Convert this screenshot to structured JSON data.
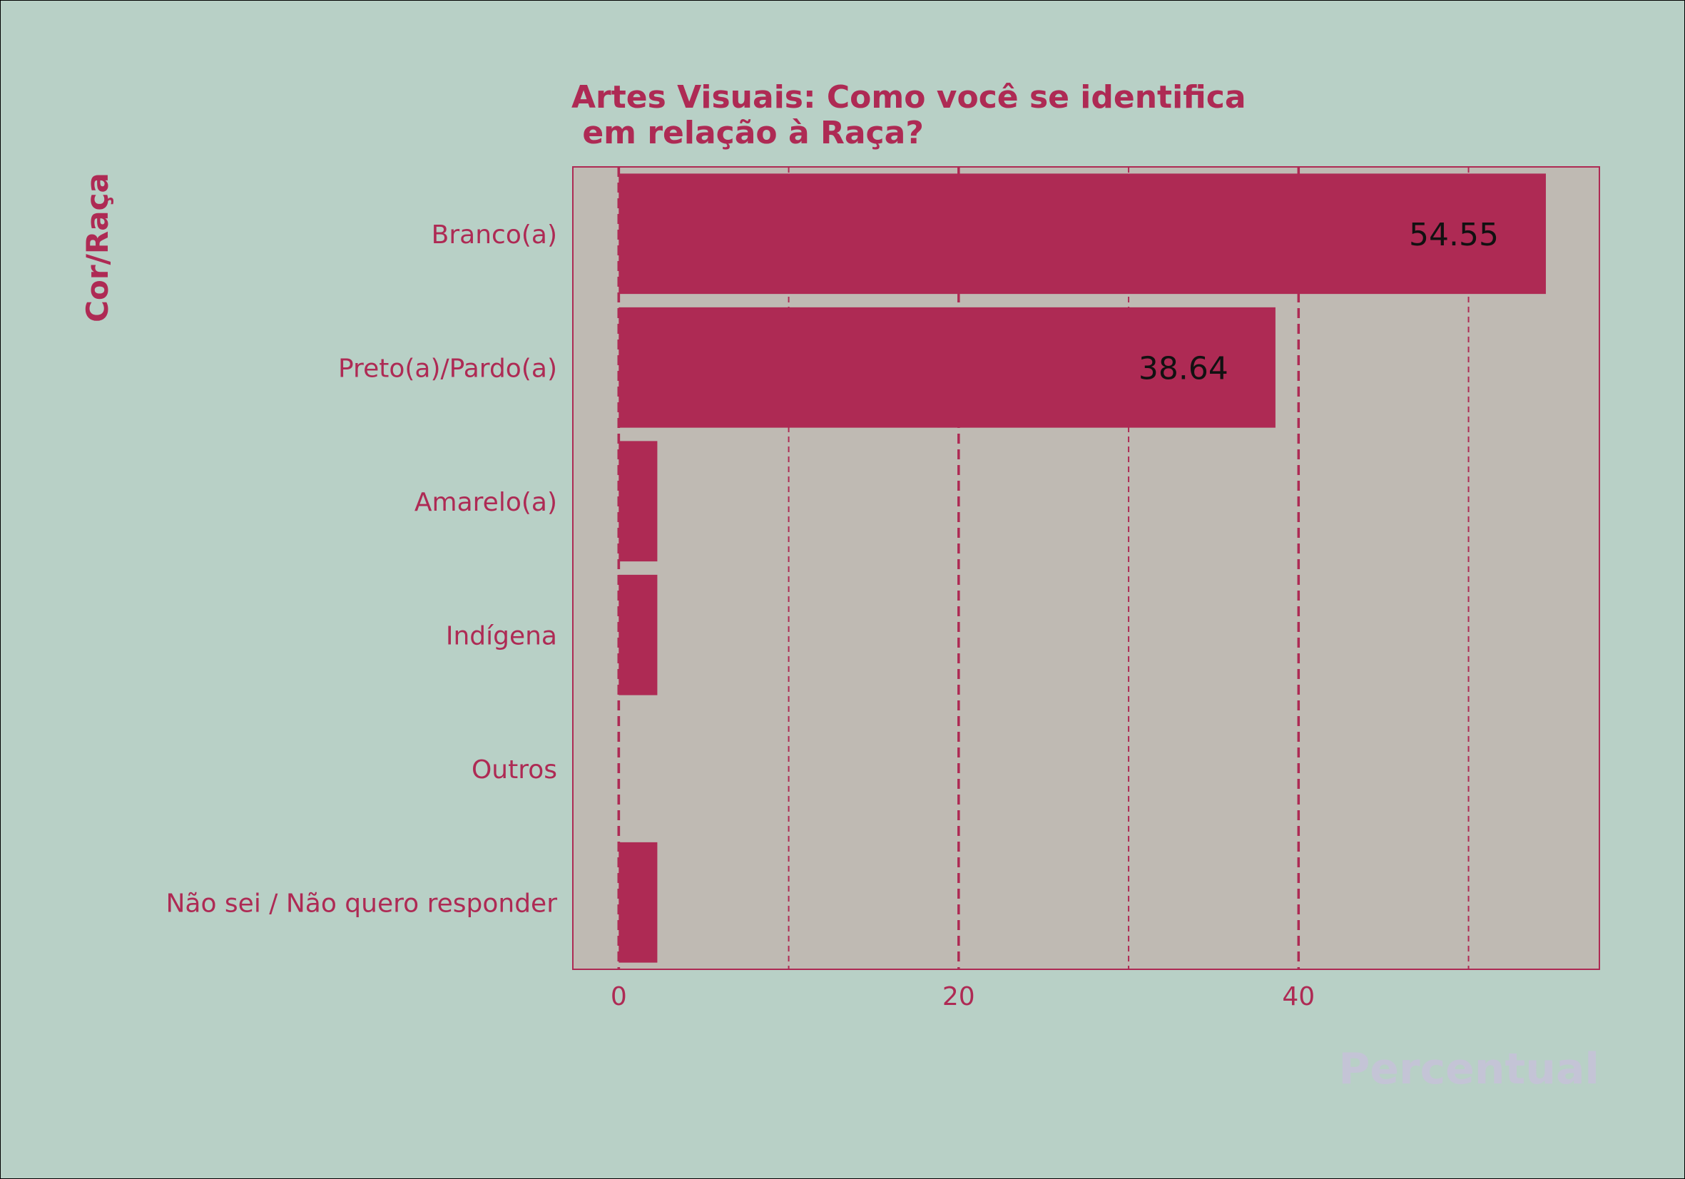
{
  "colors": {
    "figure_bg": "#b8d0c6",
    "plot_bg": "#bfbab3",
    "accent": "#ae2a54",
    "xlabel_color": "#c4c4d6",
    "value_label_color": "#111111"
  },
  "chart_data": {
    "type": "bar",
    "orientation": "horizontal",
    "title_line1": "Artes Visuais: Como você se identifica",
    "title_line2": " em relação à Raça?",
    "xlabel": "Percentual",
    "ylabel": "Cor/Raça",
    "categories": [
      "Branco(a)",
      "Preto(a)/Pardo(a)",
      "Amarelo(a)",
      "Indígena",
      "Outros",
      "Não sei / Não quero responder"
    ],
    "values": [
      54.55,
      38.64,
      2.27,
      2.27,
      0,
      2.27
    ],
    "value_labels": [
      "54.55",
      "38.64",
      "",
      "",
      "",
      ""
    ],
    "xlim": [
      -2.7,
      57.7
    ],
    "xticks": [
      0,
      20,
      40
    ],
    "xtick_labels": [
      "0",
      "20",
      "40"
    ],
    "grid_major": [
      0,
      20,
      40
    ],
    "grid_minor": [
      10,
      30,
      50
    ],
    "grid": true
  }
}
